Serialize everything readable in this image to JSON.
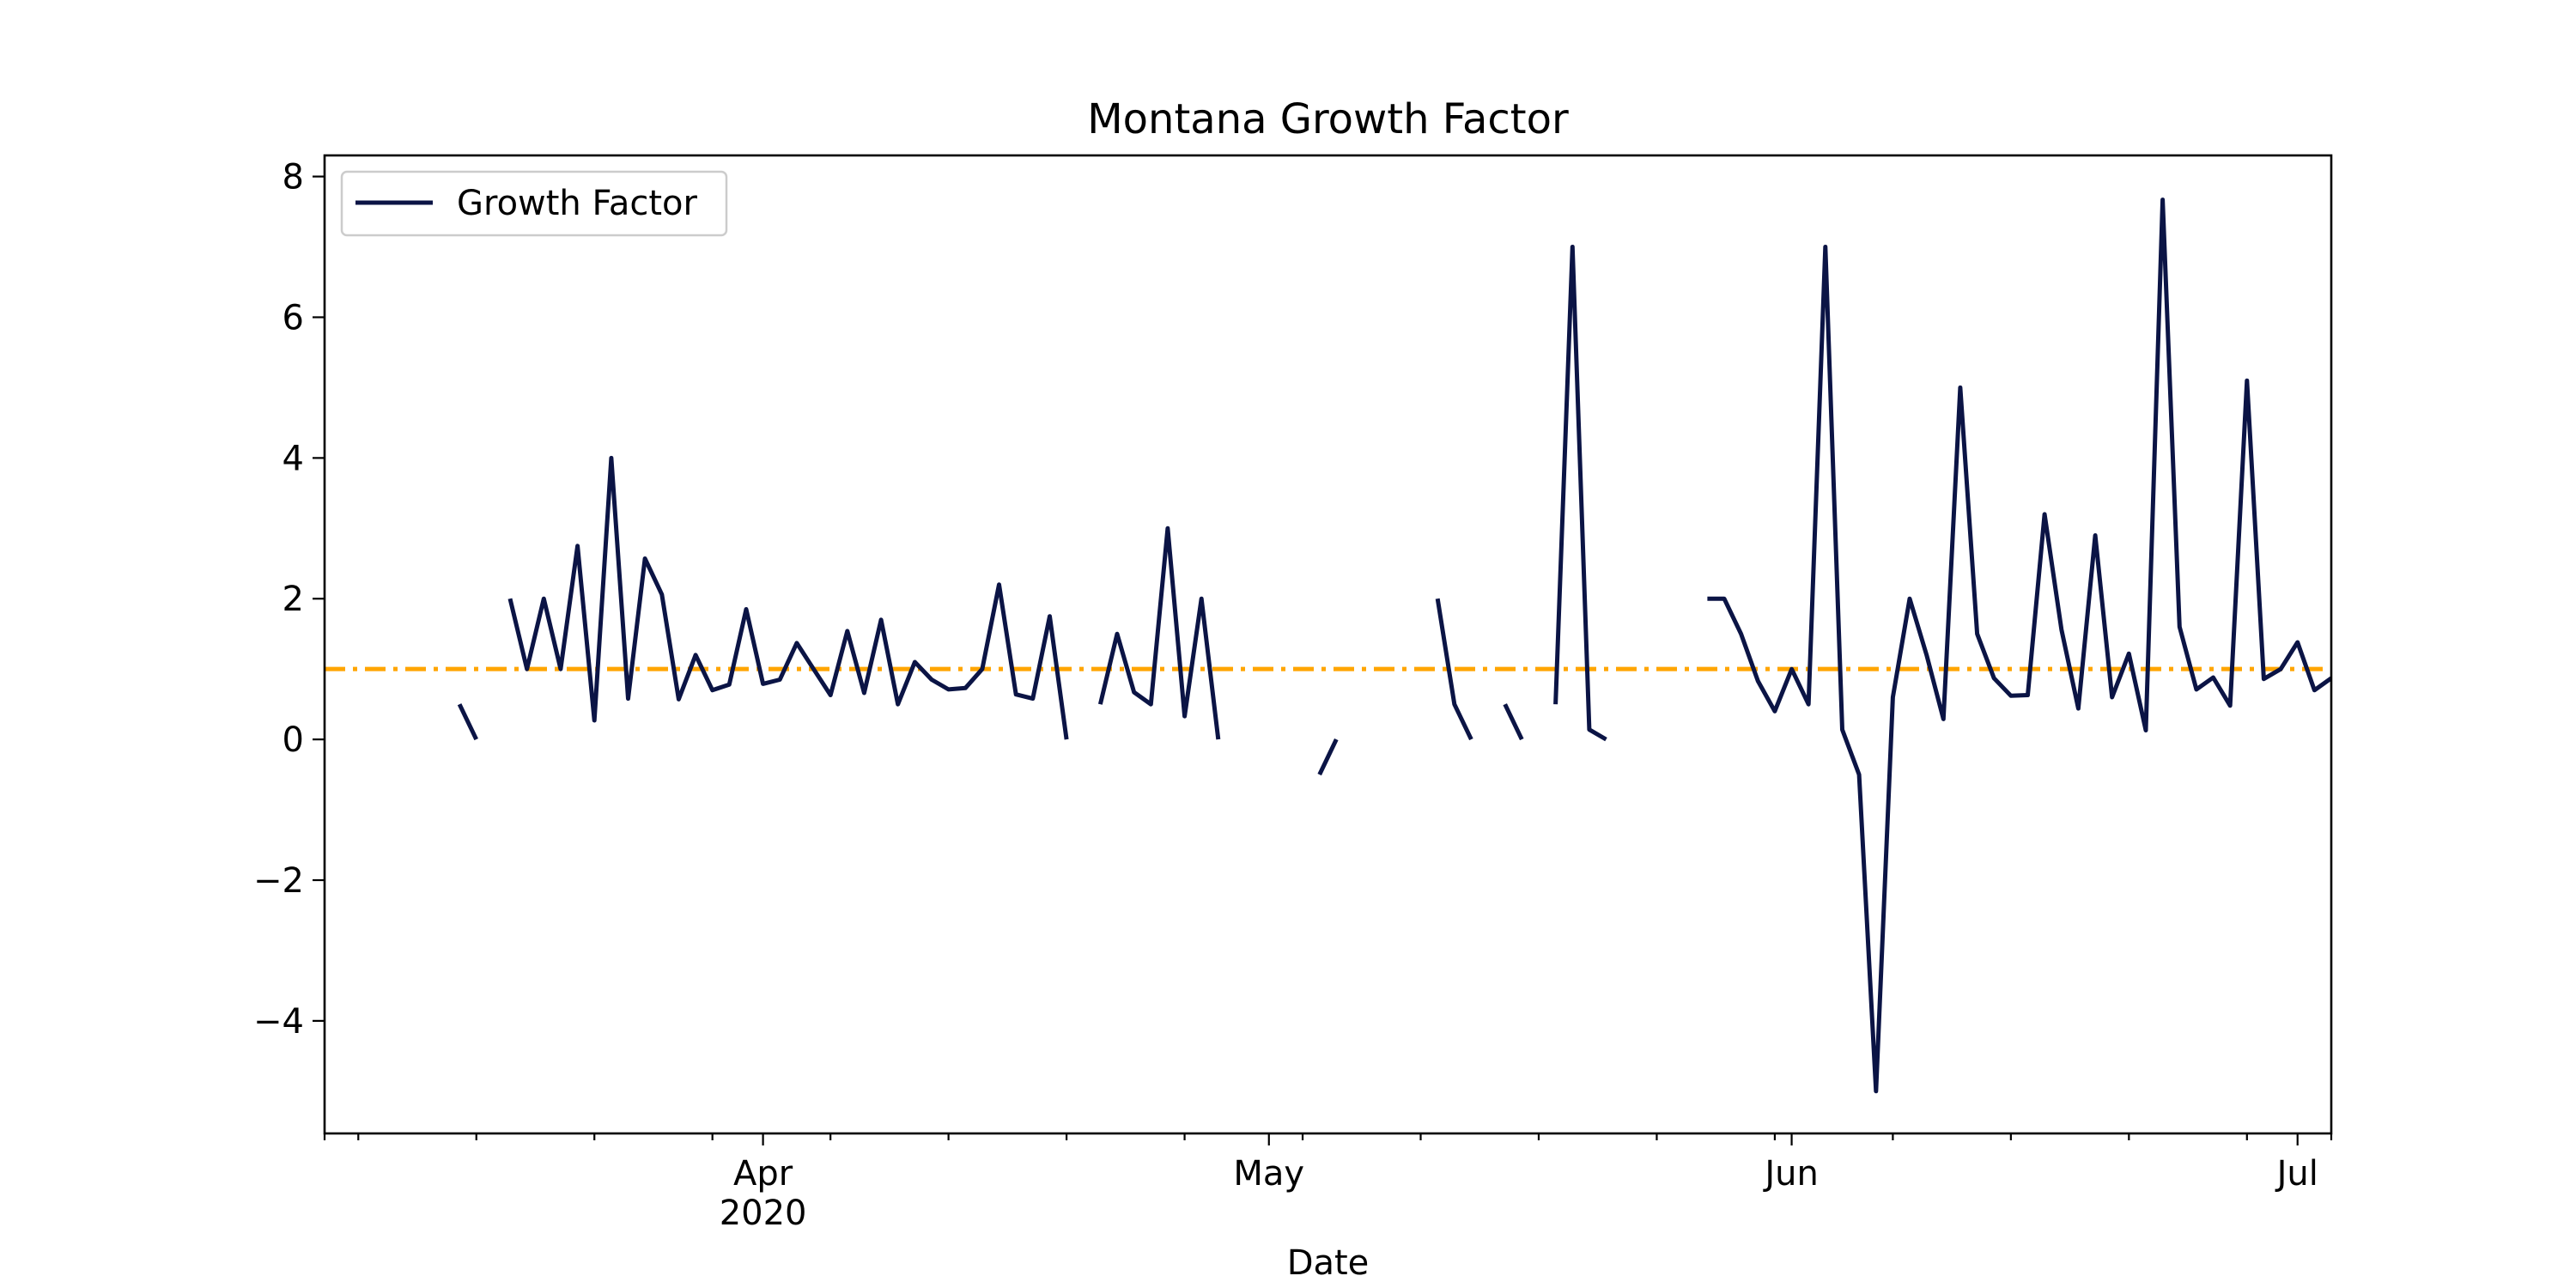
{
  "chart_data": {
    "type": "line",
    "title": "Montana Growth Factor",
    "xlabel": "Date",
    "ylabel": "",
    "x_ticks_major": [
      {
        "date": "2020-04-01",
        "label": "Apr",
        "sublabel": "2020"
      },
      {
        "date": "2020-05-01",
        "label": "May",
        "sublabel": ""
      },
      {
        "date": "2020-06-01",
        "label": "Jun",
        "sublabel": ""
      },
      {
        "date": "2020-07-01",
        "label": "Jul",
        "sublabel": ""
      }
    ],
    "x_ticks_minor": [
      "2020-03-08",
      "2020-03-15",
      "2020-03-22",
      "2020-03-29",
      "2020-04-05",
      "2020-04-12",
      "2020-04-19",
      "2020-04-26",
      "2020-05-03",
      "2020-05-10",
      "2020-05-17",
      "2020-05-24",
      "2020-05-31",
      "2020-06-07",
      "2020-06-14",
      "2020-06-21",
      "2020-06-28",
      "2020-07-03"
    ],
    "xlim": [
      "2020-03-06",
      "2020-07-03"
    ],
    "ylim": [
      -5.6,
      8.3
    ],
    "y_ticks": [
      -4,
      -2,
      0,
      2,
      4,
      6,
      8
    ],
    "reference_line": {
      "y": 1,
      "color": "#ffa500",
      "style": "dash-dot"
    },
    "legend": {
      "position": "top-left",
      "entries": [
        "Growth Factor"
      ]
    },
    "series": [
      {
        "name": "Growth Factor",
        "color": "#0b1445",
        "points": [
          [
            "2020-03-14",
            0.5
          ],
          [
            "2020-03-15",
            0.0
          ],
          [
            "2020-03-16",
            null
          ],
          [
            "2020-03-17",
            2.0
          ],
          [
            "2020-03-18",
            1.0
          ],
          [
            "2020-03-19",
            2.0
          ],
          [
            "2020-03-20",
            1.0
          ],
          [
            "2020-03-21",
            2.75
          ],
          [
            "2020-03-22",
            0.27
          ],
          [
            "2020-03-23",
            4.0
          ],
          [
            "2020-03-24",
            0.58
          ],
          [
            "2020-03-25",
            2.57
          ],
          [
            "2020-03-26",
            2.06
          ],
          [
            "2020-03-27",
            0.57
          ],
          [
            "2020-03-28",
            1.2
          ],
          [
            "2020-03-29",
            0.7
          ],
          [
            "2020-03-30",
            0.78
          ],
          [
            "2020-03-31",
            1.85
          ],
          [
            "2020-04-01",
            0.79
          ],
          [
            "2020-04-02",
            0.85
          ],
          [
            "2020-04-03",
            1.37
          ],
          [
            "2020-04-04",
            1.0
          ],
          [
            "2020-04-05",
            0.63
          ],
          [
            "2020-04-06",
            1.54
          ],
          [
            "2020-04-07",
            0.66
          ],
          [
            "2020-04-08",
            1.7
          ],
          [
            "2020-04-09",
            0.5
          ],
          [
            "2020-04-10",
            1.1
          ],
          [
            "2020-04-11",
            0.85
          ],
          [
            "2020-04-12",
            0.71
          ],
          [
            "2020-04-13",
            0.73
          ],
          [
            "2020-04-14",
            1.0
          ],
          [
            "2020-04-15",
            2.2
          ],
          [
            "2020-04-16",
            0.64
          ],
          [
            "2020-04-17",
            0.58
          ],
          [
            "2020-04-18",
            1.75
          ],
          [
            "2020-04-19",
            0.0
          ],
          [
            "2020-04-20",
            null
          ],
          [
            "2020-04-21",
            0.5
          ],
          [
            "2020-04-22",
            1.5
          ],
          [
            "2020-04-23",
            0.67
          ],
          [
            "2020-04-24",
            0.5
          ],
          [
            "2020-04-25",
            3.0
          ],
          [
            "2020-04-26",
            0.33
          ],
          [
            "2020-04-27",
            2.0
          ],
          [
            "2020-04-28",
            0.0
          ],
          [
            "2020-04-29",
            null
          ],
          [
            "2020-05-04",
            -0.5
          ],
          [
            "2020-05-05",
            0.0
          ],
          [
            "2020-05-06",
            null
          ],
          [
            "2020-05-11",
            2.0
          ],
          [
            "2020-05-12",
            0.5
          ],
          [
            "2020-05-13",
            0.0
          ],
          [
            "2020-05-14",
            null
          ],
          [
            "2020-05-15",
            0.5
          ],
          [
            "2020-05-16",
            0.0
          ],
          [
            "2020-05-17",
            null
          ],
          [
            "2020-05-18",
            0.5
          ],
          [
            "2020-05-19",
            7.0
          ],
          [
            "2020-05-20",
            0.14
          ],
          [
            "2020-05-21",
            0.0
          ],
          [
            "2020-05-22",
            null
          ],
          [
            "2020-05-27",
            2.0
          ],
          [
            "2020-05-28",
            2.0
          ],
          [
            "2020-05-29",
            1.5
          ],
          [
            "2020-05-30",
            0.83
          ],
          [
            "2020-05-31",
            0.4
          ],
          [
            "2020-06-01",
            1.0
          ],
          [
            "2020-06-02",
            0.5
          ],
          [
            "2020-06-03",
            7.0
          ],
          [
            "2020-06-04",
            0.14
          ],
          [
            "2020-06-05",
            -0.5
          ],
          [
            "2020-06-06",
            -5.0
          ],
          [
            "2020-06-07",
            0.6
          ],
          [
            "2020-06-08",
            2.0
          ],
          [
            "2020-06-09",
            1.2
          ],
          [
            "2020-06-10",
            0.29
          ],
          [
            "2020-06-11",
            5.0
          ],
          [
            "2020-06-12",
            1.5
          ],
          [
            "2020-06-13",
            0.87
          ],
          [
            "2020-06-14",
            0.62
          ],
          [
            "2020-06-15",
            0.63
          ],
          [
            "2020-06-16",
            3.2
          ],
          [
            "2020-06-17",
            1.56
          ],
          [
            "2020-06-18",
            0.44
          ],
          [
            "2020-06-19",
            2.9
          ],
          [
            "2020-06-20",
            0.6
          ],
          [
            "2020-06-21",
            1.22
          ],
          [
            "2020-06-22",
            0.13
          ],
          [
            "2020-06-23",
            7.67
          ],
          [
            "2020-06-24",
            1.6
          ],
          [
            "2020-06-25",
            0.71
          ],
          [
            "2020-06-26",
            0.88
          ],
          [
            "2020-06-27",
            0.48
          ],
          [
            "2020-06-28",
            5.1
          ],
          [
            "2020-06-29",
            0.86
          ],
          [
            "2020-06-30",
            1.0
          ],
          [
            "2020-07-01",
            1.38
          ],
          [
            "2020-07-02",
            0.7
          ],
          [
            "2020-07-03",
            0.87
          ]
        ]
      }
    ],
    "grid": false
  }
}
